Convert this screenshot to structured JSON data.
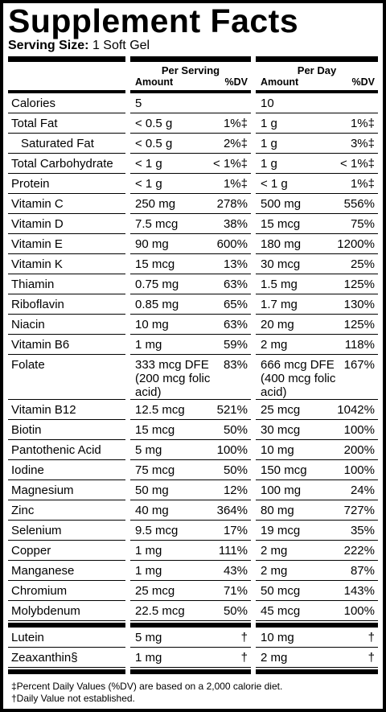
{
  "title": "Supplement Facts",
  "serving_size": {
    "label": "Serving Size:",
    "value": "1 Soft Gel"
  },
  "columns": {
    "per_serving": {
      "title": "Per Serving",
      "amount": "Amount",
      "dv": "%DV"
    },
    "per_day": {
      "title": "Per Day",
      "amount": "Amount",
      "dv": "%DV"
    }
  },
  "rows": [
    {
      "name": "Calories",
      "serving_amount": "5",
      "day_amount": "10"
    },
    {
      "name": "Total Fat",
      "serving_amount": "< 0.5 g",
      "serving_dv": "1%‡",
      "day_amount": "1 g",
      "day_dv": "1%‡"
    },
    {
      "name": "Saturated Fat",
      "indent": true,
      "serving_amount": "< 0.5 g",
      "serving_dv": "2%‡",
      "day_amount": "1 g",
      "day_dv": "3%‡"
    },
    {
      "name": "Total Carbohydrate",
      "serving_amount": "< 1 g",
      "serving_dv": "< 1%‡",
      "day_amount": "1 g",
      "day_dv": "< 1%‡"
    },
    {
      "name": "Protein",
      "serving_amount": "< 1 g",
      "serving_dv": "1%‡",
      "day_amount": "< 1 g",
      "day_dv": "1%‡"
    },
    {
      "name": "Vitamin C",
      "serving_amount": "250 mg",
      "serving_dv": "278%",
      "day_amount": "500 mg",
      "day_dv": "556%"
    },
    {
      "name": "Vitamin D",
      "serving_amount": "7.5 mcg",
      "serving_dv": "38%",
      "day_amount": "15 mcg",
      "day_dv": "75%"
    },
    {
      "name": "Vitamin E",
      "serving_amount": "90 mg",
      "serving_dv": "600%",
      "day_amount": "180 mg",
      "day_dv": "1200%"
    },
    {
      "name": "Vitamin K",
      "serving_amount": "15 mcg",
      "serving_dv": "13%",
      "day_amount": "30 mcg",
      "day_dv": "25%"
    },
    {
      "name": "Thiamin",
      "serving_amount": "0.75 mg",
      "serving_dv": "63%",
      "day_amount": "1.5 mg",
      "day_dv": "125%"
    },
    {
      "name": "Riboflavin",
      "serving_amount": "0.85 mg",
      "serving_dv": "65%",
      "day_amount": "1.7 mg",
      "day_dv": "130%"
    },
    {
      "name": "Niacin",
      "serving_amount": "10 mg",
      "serving_dv": "63%",
      "day_amount": "20 mg",
      "day_dv": "125%"
    },
    {
      "name": "Vitamin B6",
      "serving_amount": "1 mg",
      "serving_dv": "59%",
      "day_amount": "2 mg",
      "day_dv": "118%"
    },
    {
      "name": "Folate",
      "serving_amount": "333 mcg DFE\n(200 mcg folic acid)",
      "serving_dv": "83%",
      "day_amount": "666 mcg DFE\n(400 mcg folic acid)",
      "day_dv": "167%"
    },
    {
      "name": "Vitamin B12",
      "serving_amount": "12.5 mcg",
      "serving_dv": "521%",
      "day_amount": "25 mcg",
      "day_dv": "1042%"
    },
    {
      "name": "Biotin",
      "serving_amount": "15 mcg",
      "serving_dv": "50%",
      "day_amount": "30 mcg",
      "day_dv": "100%"
    },
    {
      "name": "Pantothenic Acid",
      "serving_amount": "5 mg",
      "serving_dv": "100%",
      "day_amount": "10 mg",
      "day_dv": "200%"
    },
    {
      "name": "Iodine",
      "serving_amount": "75 mcg",
      "serving_dv": "50%",
      "day_amount": "150 mcg",
      "day_dv": "100%"
    },
    {
      "name": "Magnesium",
      "serving_amount": "50 mg",
      "serving_dv": "12%",
      "day_amount": "100 mg",
      "day_dv": "24%"
    },
    {
      "name": "Zinc",
      "serving_amount": "40 mg",
      "serving_dv": "364%",
      "day_amount": "80 mg",
      "day_dv": "727%"
    },
    {
      "name": "Selenium",
      "serving_amount": "9.5 mcg",
      "serving_dv": "17%",
      "day_amount": "19 mcg",
      "day_dv": "35%"
    },
    {
      "name": "Copper",
      "serving_amount": "1 mg",
      "serving_dv": "111%",
      "day_amount": "2 mg",
      "day_dv": "222%"
    },
    {
      "name": "Manganese",
      "serving_amount": "1 mg",
      "serving_dv": "43%",
      "day_amount": "2 mg",
      "day_dv": "87%"
    },
    {
      "name": "Chromium",
      "serving_amount": "25 mcg",
      "serving_dv": "71%",
      "day_amount": "50 mcg",
      "day_dv": "143%"
    },
    {
      "name": "Molybdenum",
      "serving_amount": "22.5 mcg",
      "serving_dv": "50%",
      "day_amount": "45 mcg",
      "day_dv": "100%"
    }
  ],
  "other_rows": [
    {
      "name": "Lutein",
      "serving_amount": "5 mg",
      "serving_dv": "†",
      "day_amount": "10 mg",
      "day_dv": "†"
    },
    {
      "name": "Zeaxanthin§",
      "serving_amount": "1 mg",
      "serving_dv": "†",
      "day_amount": "2 mg",
      "day_dv": "†"
    }
  ],
  "footnotes": [
    "‡Percent Daily Values (%DV) are based on a 2,000 calorie diet.",
    "†Daily Value not established."
  ]
}
